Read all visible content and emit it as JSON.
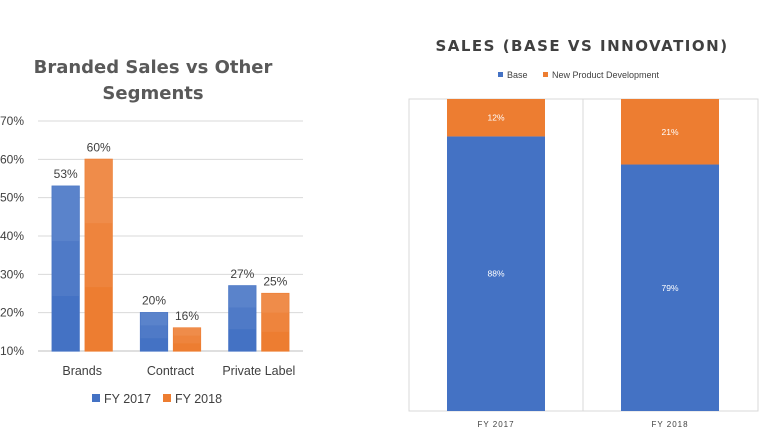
{
  "chart_data": [
    {
      "type": "bar",
      "title_lines": [
        "Branded Sales vs Other",
        "Segments"
      ],
      "categories": [
        "Brands",
        "Contract",
        "Private Label"
      ],
      "series": [
        {
          "name": "FY 2017",
          "values": [
            53,
            20,
            27
          ],
          "labels": [
            "53%",
            "20%",
            "27%"
          ],
          "color": "#4472C4"
        },
        {
          "name": "FY 2018",
          "values": [
            60,
            16,
            25
          ],
          "labels": [
            "60%",
            "16%",
            "25%"
          ],
          "color": "#ED7D31"
        }
      ],
      "yticks": [
        "10%",
        "20%",
        "30%",
        "40%",
        "50%",
        "60%",
        "70%"
      ],
      "ylim": [
        10,
        70
      ],
      "grid": true,
      "legend_position": "bottom"
    },
    {
      "type": "bar",
      "stacked": true,
      "title": "SALES (BASE VS INNOVATION)",
      "categories": [
        "FY 2017",
        "FY 2018"
      ],
      "series": [
        {
          "name": "Base",
          "values": [
            88,
            79
          ],
          "labels": [
            "88%",
            "79%"
          ],
          "color": "#4472C4"
        },
        {
          "name": "New Product Development",
          "values": [
            12,
            21
          ],
          "labels": [
            "12%",
            "21%"
          ],
          "color": "#ED7D31"
        }
      ],
      "ylim": [
        0,
        100
      ],
      "legend_position": "top"
    }
  ]
}
